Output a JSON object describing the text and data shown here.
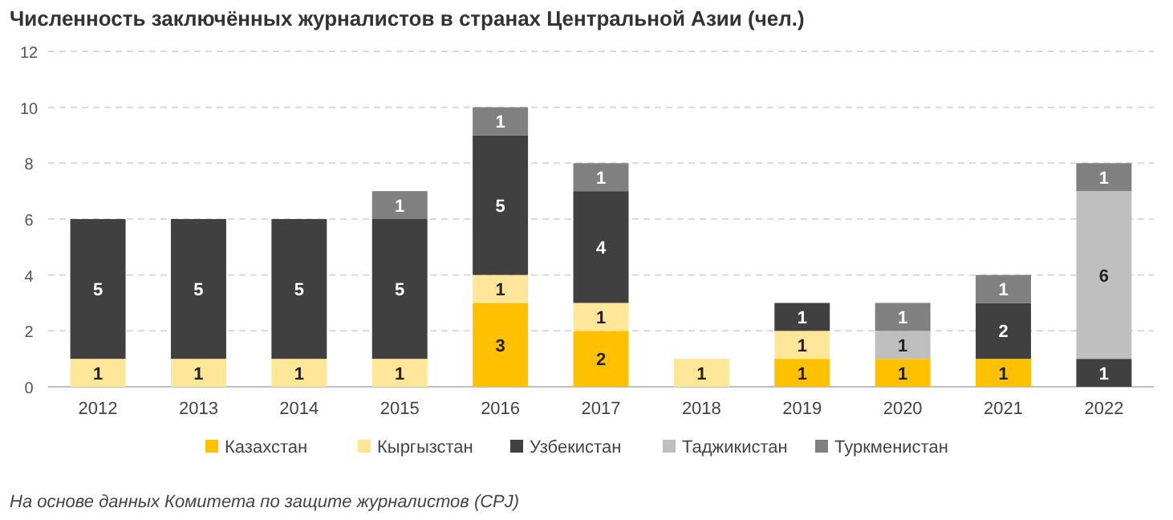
{
  "chart_data": {
    "type": "bar",
    "stacked": true,
    "title": "Численность заключённых журналистов в странах Центральной Азии (чел.)",
    "categories": [
      "2012",
      "2013",
      "2014",
      "2015",
      "2016",
      "2017",
      "2018",
      "2019",
      "2020",
      "2021",
      "2022"
    ],
    "series": [
      {
        "name": "Казахстан",
        "color": "#ffc000",
        "values": [
          null,
          null,
          null,
          null,
          3,
          2,
          null,
          1,
          1,
          1,
          null
        ]
      },
      {
        "name": "Кыргызстан",
        "color": "#ffe699",
        "values": [
          1,
          1,
          1,
          1,
          1,
          1,
          1,
          1,
          null,
          null,
          null
        ]
      },
      {
        "name": "Узбекистан",
        "color": "#404040",
        "values": [
          5,
          5,
          5,
          5,
          5,
          4,
          null,
          1,
          null,
          2,
          1
        ]
      },
      {
        "name": "Таджикистан",
        "color": "#bfbfbf",
        "values": [
          null,
          null,
          null,
          null,
          null,
          null,
          null,
          null,
          1,
          null,
          6
        ]
      },
      {
        "name": "Туркменистан",
        "color": "#808080",
        "values": [
          null,
          null,
          null,
          1,
          1,
          1,
          null,
          null,
          1,
          1,
          1
        ]
      }
    ],
    "ylim": [
      0,
      12
    ],
    "yticks": [
      0,
      2,
      4,
      6,
      8,
      10,
      12
    ],
    "grid": "y",
    "legend": "bottom",
    "data_labels": true,
    "annotations": [
      "На основе данных Комитета по защите журналистов (CPJ)"
    ]
  }
}
